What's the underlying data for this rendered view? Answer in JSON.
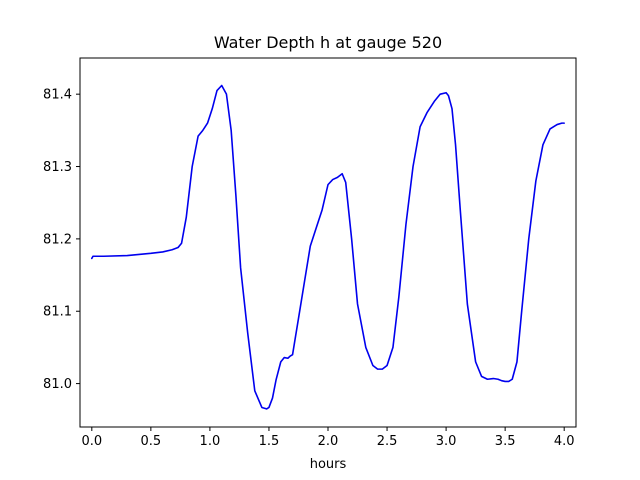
{
  "chart_data": {
    "type": "line",
    "title": "Water Depth h at gauge 520",
    "xlabel": "hours",
    "ylabel": "",
    "xlim": [
      -0.1,
      4.1
    ],
    "ylim": [
      80.94,
      81.45
    ],
    "xticks": [
      0.0,
      0.5,
      1.0,
      1.5,
      2.0,
      2.5,
      3.0,
      3.5,
      4.0
    ],
    "xtick_labels": [
      "0.0",
      "0.5",
      "1.0",
      "1.5",
      "2.0",
      "2.5",
      "3.0",
      "3.5",
      "4.0"
    ],
    "yticks": [
      81.0,
      81.1,
      81.2,
      81.3,
      81.4
    ],
    "ytick_labels": [
      "81.0",
      "81.1",
      "81.2",
      "81.3",
      "81.4"
    ],
    "grid": false,
    "series": [
      {
        "color": "#0000ee",
        "x": [
          0.0,
          0.01,
          0.1,
          0.3,
          0.5,
          0.6,
          0.68,
          0.73,
          0.76,
          0.8,
          0.85,
          0.9,
          0.94,
          0.98,
          1.02,
          1.06,
          1.1,
          1.14,
          1.18,
          1.22,
          1.26,
          1.32,
          1.38,
          1.44,
          1.48,
          1.5,
          1.53,
          1.56,
          1.6,
          1.63,
          1.66,
          1.68,
          1.7,
          1.72,
          1.75,
          1.8,
          1.85,
          1.9,
          1.95,
          2.0,
          2.04,
          2.08,
          2.12,
          2.15,
          2.2,
          2.25,
          2.32,
          2.38,
          2.42,
          2.46,
          2.5,
          2.55,
          2.6,
          2.66,
          2.72,
          2.78,
          2.84,
          2.9,
          2.95,
          3.0,
          3.02,
          3.05,
          3.08,
          3.12,
          3.18,
          3.25,
          3.3,
          3.35,
          3.4,
          3.44,
          3.47,
          3.5,
          3.53,
          3.56,
          3.6,
          3.64,
          3.7,
          3.76,
          3.82,
          3.88,
          3.94,
          3.98,
          4.0
        ],
        "y": [
          81.173,
          81.176,
          81.176,
          81.177,
          81.18,
          81.182,
          81.185,
          81.188,
          81.194,
          81.23,
          81.3,
          81.342,
          81.35,
          81.36,
          81.38,
          81.405,
          81.412,
          81.4,
          81.35,
          81.26,
          81.16,
          81.07,
          80.99,
          80.967,
          80.965,
          80.967,
          80.98,
          81.005,
          81.03,
          81.036,
          81.035,
          81.038,
          81.04,
          81.06,
          81.09,
          81.14,
          81.19,
          81.215,
          81.24,
          81.275,
          81.282,
          81.285,
          81.29,
          81.278,
          81.2,
          81.11,
          81.05,
          81.025,
          81.02,
          81.02,
          81.025,
          81.05,
          81.12,
          81.22,
          81.3,
          81.355,
          81.375,
          81.39,
          81.4,
          81.402,
          81.398,
          81.38,
          81.33,
          81.24,
          81.11,
          81.03,
          81.01,
          81.006,
          81.007,
          81.006,
          81.004,
          81.003,
          81.003,
          81.006,
          81.03,
          81.1,
          81.2,
          81.28,
          81.33,
          81.352,
          81.358,
          81.36,
          81.36
        ]
      }
    ]
  }
}
